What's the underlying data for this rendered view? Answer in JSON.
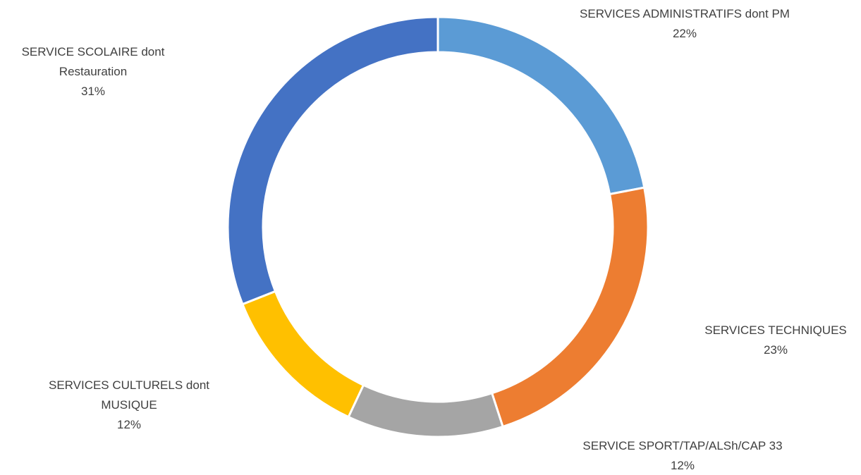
{
  "chart_data": {
    "type": "donut",
    "categories": [
      "SERVICES ADMINISTRATIFS dont PM",
      "SERVICES TECHNIQUES",
      "SERVICE SPORT/TAP/ALSh/CAP 33",
      "SERVICES CULTURELS dont MUSIQUE",
      "SERVICE SCOLAIRE dont Restauration"
    ],
    "values": [
      22,
      23,
      12,
      12,
      31
    ],
    "value_labels": [
      "22%",
      "23%",
      "12%",
      "12%",
      "31%"
    ],
    "colors": [
      "#5b9bd5",
      "#ed7d31",
      "#a5a5a5",
      "#ffc000",
      "#4472c4"
    ]
  }
}
